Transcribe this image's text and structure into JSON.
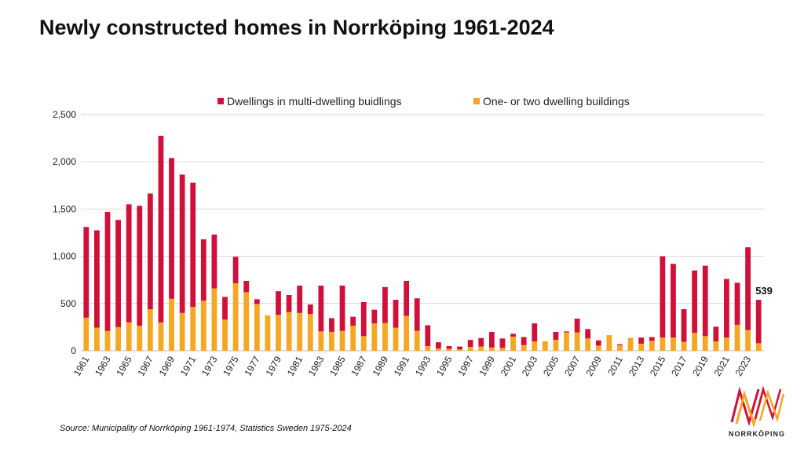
{
  "title": "Newly constructed homes in Norrköping 1961-2024",
  "source": "Source: Municipality of Norrköping 1961-1974, Statistics Sweden 1975-2024",
  "logo": {
    "text": "NORRKÖPING"
  },
  "colors": {
    "multi": "#d0103a",
    "single": "#f5a623",
    "grid": "#d9d9d9",
    "text": "#222222"
  },
  "chart_data": {
    "type": "bar",
    "stacked": true,
    "title": "Newly constructed homes in Norrköping 1961-2024",
    "xlabel": "",
    "ylabel": "",
    "ylim": [
      0,
      2500
    ],
    "yticks": [
      0,
      500,
      1000,
      1500,
      2000,
      2500
    ],
    "ytick_labels": [
      "0",
      "500",
      "1,000",
      "1,500",
      "2,000",
      "2,500"
    ],
    "legend_position": "top-center",
    "categories": [
      1961,
      1962,
      1963,
      1964,
      1965,
      1966,
      1967,
      1968,
      1969,
      1970,
      1971,
      1972,
      1973,
      1974,
      1975,
      1976,
      1977,
      1978,
      1979,
      1980,
      1981,
      1982,
      1983,
      1984,
      1985,
      1986,
      1987,
      1988,
      1989,
      1990,
      1991,
      1992,
      1993,
      1994,
      1995,
      1996,
      1997,
      1998,
      1999,
      2000,
      2001,
      2002,
      2003,
      2004,
      2005,
      2006,
      2007,
      2008,
      2009,
      2010,
      2011,
      2012,
      2013,
      2014,
      2015,
      2016,
      2017,
      2018,
      2019,
      2020,
      2021,
      2022,
      2023,
      2024
    ],
    "xtick_labels": [
      "1961",
      "1963",
      "1965",
      "1967",
      "1969",
      "1971",
      "1973",
      "1975",
      "1977",
      "1979",
      "1981",
      "1983",
      "1985",
      "1987",
      "1989",
      "1991",
      "1993",
      "1995",
      "1997",
      "1999",
      "2001",
      "2003",
      "2005",
      "2007",
      "2009",
      "2011",
      "2013",
      "2015",
      "2017",
      "2019",
      "2021",
      "2023"
    ],
    "series": [
      {
        "name": "One- or two dwelling buildings",
        "values": [
          350,
          245,
          210,
          250,
          300,
          265,
          440,
          300,
          550,
          400,
          465,
          530,
          660,
          330,
          715,
          620,
          495,
          375,
          380,
          410,
          400,
          390,
          205,
          200,
          210,
          265,
          155,
          290,
          295,
          245,
          370,
          210,
          50,
          25,
          20,
          15,
          40,
          45,
          35,
          30,
          150,
          60,
          100,
          100,
          115,
          195,
          195,
          130,
          55,
          165,
          60,
          135,
          75,
          105,
          140,
          140,
          95,
          190,
          155,
          100,
          140,
          275,
          220,
          80
        ]
      },
      {
        "name": "Dwellings in multi-dwelling buidlings",
        "values": [
          960,
          1030,
          1260,
          1135,
          1250,
          1270,
          1225,
          1975,
          1490,
          1465,
          1315,
          650,
          570,
          240,
          280,
          120,
          50,
          0,
          250,
          180,
          290,
          100,
          485,
          145,
          480,
          95,
          360,
          145,
          380,
          295,
          370,
          345,
          220,
          65,
          30,
          30,
          75,
          90,
          165,
          100,
          30,
          85,
          190,
          0,
          85,
          10,
          145,
          100,
          55,
          0,
          10,
          0,
          65,
          40,
          860,
          780,
          345,
          660,
          745,
          155,
          620,
          445,
          875,
          459
        ]
      }
    ],
    "annotation": {
      "text": "539",
      "year": 2024,
      "value": 539
    }
  }
}
